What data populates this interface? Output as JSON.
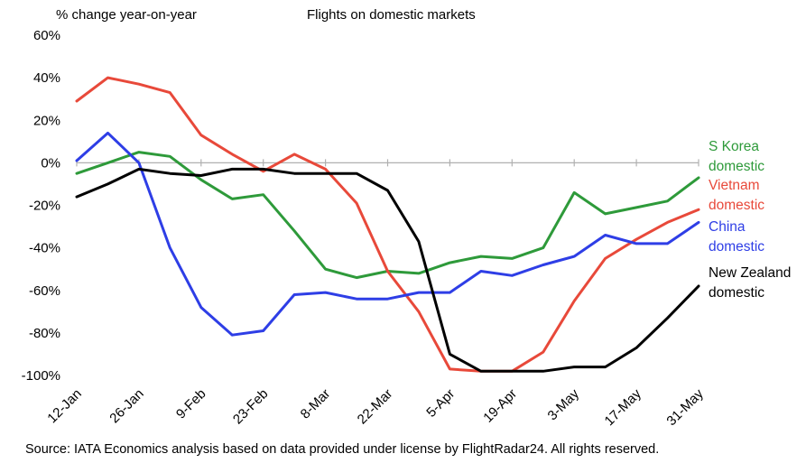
{
  "chart_data": {
    "type": "line",
    "title": "Flights on domestic markets",
    "ylabel": "% change year-on-year",
    "source": "Source: IATA Economics analysis based on data provided under license by FlightRadar24. All rights reserved.",
    "ylim": [
      -100,
      60
    ],
    "yticks": [
      60,
      40,
      20,
      0,
      -20,
      -40,
      -60,
      -80,
      -100
    ],
    "ytick_labels": [
      "60%",
      "40%",
      "20%",
      "0%",
      "-20%",
      "-40%",
      "-60%",
      "-80%",
      "-100%"
    ],
    "x_tick_labels": [
      "12-Jan",
      "26-Jan",
      "9-Feb",
      "23-Feb",
      "8-Mar",
      "22-Mar",
      "5-Apr",
      "19-Apr",
      "3-May",
      "17-May",
      "31-May"
    ],
    "x": [
      "12-Jan",
      "19-Jan",
      "26-Jan",
      "2-Feb",
      "9-Feb",
      "16-Feb",
      "23-Feb",
      "1-Mar",
      "8-Mar",
      "15-Mar",
      "22-Mar",
      "29-Mar",
      "5-Apr",
      "12-Apr",
      "19-Apr",
      "26-Apr",
      "3-May",
      "10-May",
      "17-May",
      "24-May",
      "31-May"
    ],
    "series": [
      {
        "name": "S Korea domestic",
        "label_lines": [
          "S Korea",
          "domestic"
        ],
        "color": "#2e9a3a",
        "values": [
          -5,
          0,
          5,
          3,
          -8,
          -17,
          -15,
          -32,
          -50,
          -54,
          -51,
          -52,
          -47,
          -44,
          -45,
          -40,
          -14,
          -24,
          -21,
          -18,
          -7
        ]
      },
      {
        "name": "Vietnam domestic",
        "label_lines": [
          "Vietnam",
          "domestic"
        ],
        "color": "#e8493a",
        "values": [
          29,
          40,
          37,
          33,
          13,
          4,
          -4,
          4,
          -3,
          -19,
          -51,
          -70,
          -97,
          -98,
          -98,
          -89,
          -65,
          -45,
          -36,
          -28,
          -22
        ]
      },
      {
        "name": "China domestic",
        "label_lines": [
          "China",
          "domestic"
        ],
        "color": "#2e3ee6",
        "values": [
          1,
          14,
          0,
          -40,
          -68,
          -81,
          -79,
          -62,
          -61,
          -64,
          -64,
          -61,
          -61,
          -51,
          -53,
          -48,
          -44,
          -34,
          -38,
          -38,
          -28
        ]
      },
      {
        "name": "New Zealand domestic",
        "label_lines": [
          "New Zealand",
          "domestic"
        ],
        "color": "#000000",
        "values": [
          -16,
          -10,
          -3,
          -5,
          -6,
          -3,
          -3,
          -5,
          -5,
          -5,
          -13,
          -37,
          -90,
          -98,
          -98,
          -98,
          -96,
          -96,
          -87,
          -73,
          -58
        ]
      }
    ],
    "grid": false,
    "legend": "right"
  }
}
